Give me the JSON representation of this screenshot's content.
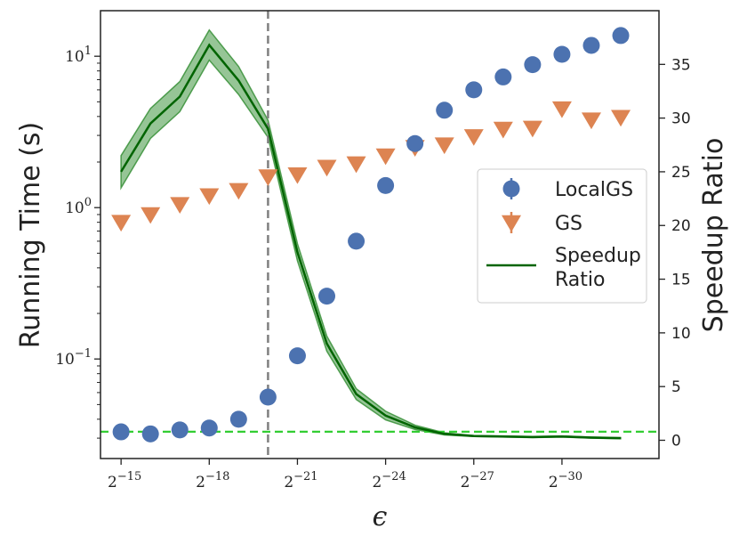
{
  "chart_data": {
    "type": "scatter",
    "title": "",
    "xlabel": "ϵ",
    "ylabel_left": "Running Time (s)",
    "ylabel_right": "Speedup Ratio",
    "y_left_scale": "log",
    "y_left_lim": [
      0.022,
      20
    ],
    "y_right_lim": [
      -1.7,
      40
    ],
    "x_exponent_lim": [
      -14.3,
      -33.3
    ],
    "x_ticks": [
      {
        "exp": -15,
        "base": "2",
        "sup": "−15"
      },
      {
        "exp": -18,
        "base": "2",
        "sup": "−18"
      },
      {
        "exp": -21,
        "base": "2",
        "sup": "−21"
      },
      {
        "exp": -24,
        "base": "2",
        "sup": "−24"
      },
      {
        "exp": -27,
        "base": "2",
        "sup": "−27"
      },
      {
        "exp": -30,
        "base": "2",
        "sup": "−30"
      }
    ],
    "y_left_ticks": [
      {
        "value": 0.1,
        "base": "10",
        "sup": "−1"
      },
      {
        "value": 1,
        "base": "10",
        "sup": "0"
      },
      {
        "value": 10,
        "base": "10",
        "sup": "1"
      }
    ],
    "y_right_ticks": [
      0,
      5,
      10,
      15,
      20,
      25,
      30,
      35
    ],
    "x_exponents": [
      -15,
      -16,
      -17,
      -18,
      -19,
      -20,
      -21,
      -22,
      -23,
      -24,
      -25,
      -26,
      -27,
      -28,
      -29,
      -30,
      -31,
      -32
    ],
    "series": [
      {
        "name": "LocalGS",
        "kind": "scatter",
        "marker": "circle",
        "color": "#4c72b0",
        "axis": "left",
        "values": [
          0.033,
          0.032,
          0.034,
          0.035,
          0.04,
          0.056,
          0.105,
          0.26,
          0.6,
          1.4,
          2.65,
          4.4,
          6.0,
          7.3,
          8.8,
          10.3,
          11.8,
          13.7
        ]
      },
      {
        "name": "GS",
        "kind": "scatter",
        "marker": "triangle-down",
        "color": "#dd8452",
        "axis": "left",
        "values": [
          0.8,
          0.9,
          1.05,
          1.2,
          1.3,
          1.6,
          1.65,
          1.85,
          1.95,
          2.2,
          2.5,
          2.6,
          2.95,
          3.3,
          3.35,
          4.5,
          3.8,
          3.95
        ]
      },
      {
        "name": "Speedup Ratio",
        "kind": "line",
        "color": "#006400",
        "band_color": "#2e8b2e",
        "axis": "right",
        "values": [
          25.0,
          29.5,
          32.0,
          36.8,
          33.5,
          29.0,
          17.5,
          9.0,
          4.3,
          2.3,
          1.2,
          0.6,
          0.4,
          0.35,
          0.3,
          0.35,
          0.25,
          0.2
        ],
        "band_halfwidth": [
          1.5,
          1.4,
          1.4,
          1.4,
          1.3,
          0.8,
          0.8,
          0.7,
          0.5,
          0.4,
          0.2,
          0.1,
          0.05,
          0.05,
          0.05,
          0.05,
          0.05,
          0.05
        ]
      }
    ],
    "vline": {
      "exp": -20,
      "color": "#808080",
      "style": "dashed"
    },
    "hline": {
      "axis": "right",
      "value": 0.8,
      "color": "#32cd32",
      "style": "dashed"
    },
    "legend": {
      "placement": "center-right",
      "entries": [
        {
          "label": "LocalGS",
          "series": 0
        },
        {
          "label": "GS",
          "series": 1
        },
        {
          "label_lines": [
            "Speedup",
            "Ratio"
          ],
          "series": 2
        }
      ]
    }
  }
}
